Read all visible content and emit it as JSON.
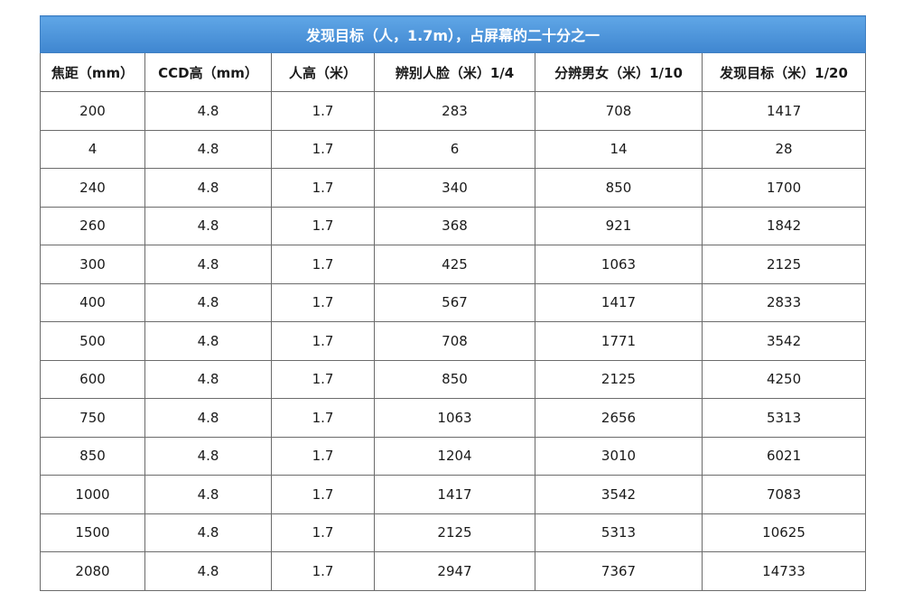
{
  "table": {
    "title": "发现目标（人，1.7m），占屏幕的二十分之一",
    "headers": [
      "焦距（mm）",
      "CCD高（mm）",
      "人高（米）",
      "辨别人脸（米）1/4",
      "分辨男女（米）1/10",
      "发现目标（米）1/20"
    ],
    "rows": [
      [
        "200",
        "4.8",
        "1.7",
        "283",
        "708",
        "1417"
      ],
      [
        "4",
        "4.8",
        "1.7",
        "6",
        "14",
        "28"
      ],
      [
        "240",
        "4.8",
        "1.7",
        "340",
        "850",
        "1700"
      ],
      [
        "260",
        "4.8",
        "1.7",
        "368",
        "921",
        "1842"
      ],
      [
        "300",
        "4.8",
        "1.7",
        "425",
        "1063",
        "2125"
      ],
      [
        "400",
        "4.8",
        "1.7",
        "567",
        "1417",
        "2833"
      ],
      [
        "500",
        "4.8",
        "1.7",
        "708",
        "1771",
        "3542"
      ],
      [
        "600",
        "4.8",
        "1.7",
        "850",
        "2125",
        "4250"
      ],
      [
        "750",
        "4.8",
        "1.7",
        "1063",
        "2656",
        "5313"
      ],
      [
        "850",
        "4.8",
        "1.7",
        "1204",
        "3010",
        "6021"
      ],
      [
        "1000",
        "4.8",
        "1.7",
        "1417",
        "3542",
        "7083"
      ],
      [
        "1500",
        "4.8",
        "1.7",
        "2125",
        "5313",
        "10625"
      ],
      [
        "2080",
        "4.8",
        "1.7",
        "2947",
        "7367",
        "14733"
      ]
    ]
  }
}
